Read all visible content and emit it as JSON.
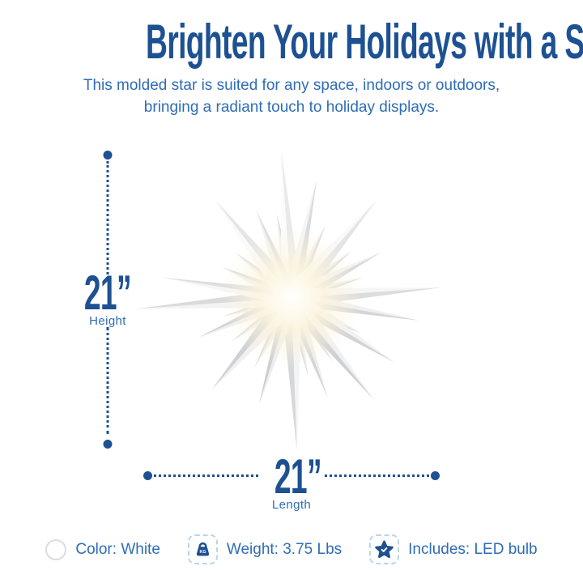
{
  "header": {
    "title": "Brighten Your Holidays with a Star",
    "subtitle_line1": "This molded star is suited for any space, indoors or outdoors,",
    "subtitle_line2": "bringing a radiant touch to holiday displays."
  },
  "dimensions": {
    "height": {
      "value": "21”",
      "label": "Height"
    },
    "length": {
      "value": "21”",
      "label": "Length"
    }
  },
  "features": [
    {
      "icon": "color-swatch-white-icon",
      "label": "Color: White"
    },
    {
      "icon": "weight-kg-icon",
      "label": "Weight: 3.75 Lbs"
    },
    {
      "icon": "star-check-icon",
      "label": "Includes: LED bulb"
    }
  ],
  "product_image": {
    "name": "white-moravian-star-with-led-glow"
  },
  "colors": {
    "title_blue": "#1d5192",
    "text_blue": "#2e6db6",
    "dashed_border_blue": "#bcd4ec",
    "swatch_border_gray": "#d9dde2",
    "background": "#ffffff"
  }
}
